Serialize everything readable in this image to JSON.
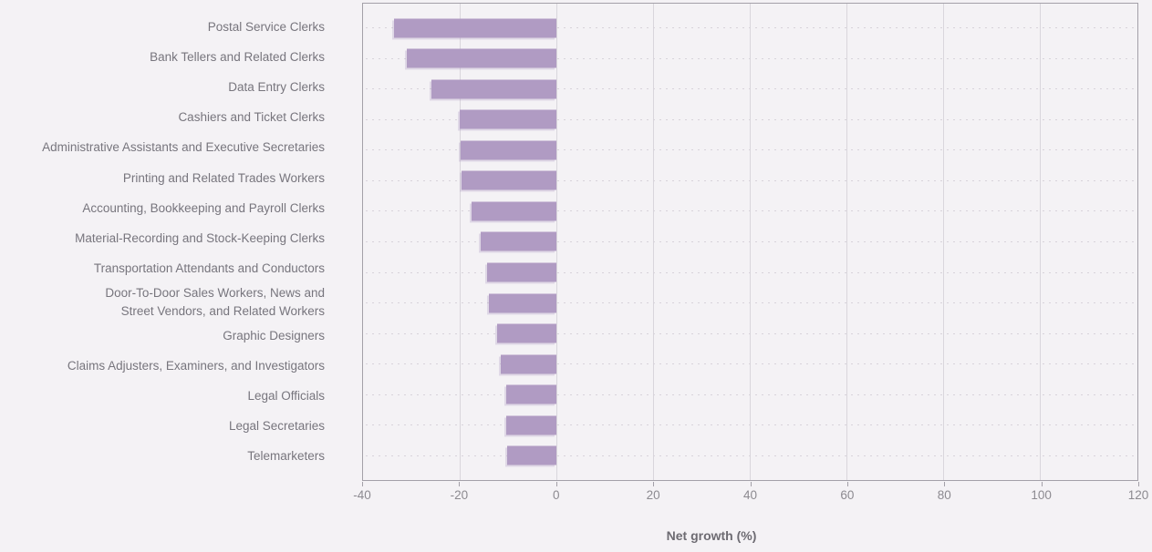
{
  "chart_data": {
    "type": "bar",
    "orientation": "horizontal",
    "title": "",
    "xlabel": "Net growth (%)",
    "ylabel": "",
    "xlim": [
      -40,
      120
    ],
    "xticks": [
      -40,
      -20,
      0,
      20,
      40,
      60,
      80,
      100,
      120
    ],
    "grid": true,
    "categories": [
      "Postal Service Clerks",
      "Bank Tellers and Related Clerks",
      "Data Entry Clerks",
      "Cashiers and Ticket Clerks",
      "Administrative Assistants and Executive Secretaries",
      "Printing and Related Trades Workers",
      "Accounting, Bookkeeping and Payroll Clerks",
      "Material-Recording and Stock-Keeping Clerks",
      "Transportation Attendants and Conductors",
      "Door-To-Door Sales Workers, News and\nStreet Vendors, and Related Workers",
      "Graphic Designers",
      "Claims Adjusters, Examiners, and Investigators",
      "Legal Officials",
      "Legal Secretaries",
      "Telemarketers"
    ],
    "values": [
      -33.6,
      -31.0,
      -25.8,
      -20.1,
      -19.9,
      -19.6,
      -17.6,
      -15.7,
      -14.3,
      -13.9,
      -12.3,
      -11.5,
      -10.5,
      -10.4,
      -10.2
    ]
  },
  "colors": {
    "background": "#f4f2f5",
    "bar": "#b09bc3",
    "plot_border": "#a3a0a8",
    "gridline": "#d9d6dc",
    "leader_dots": "#d7d3da",
    "label_text": "#77757d",
    "tick_text": "#8c8a90",
    "axis_title_text": "#6d6b72"
  }
}
